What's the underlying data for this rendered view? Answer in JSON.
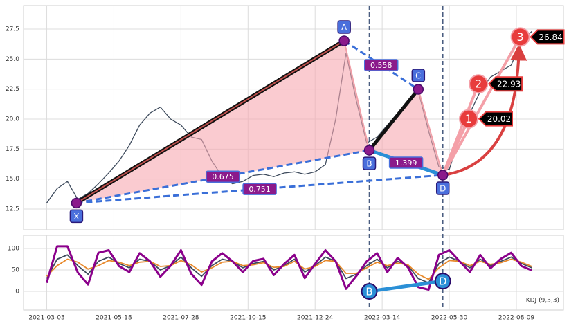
{
  "chart_data": [
    {
      "type": "line",
      "xlim": [
        -18,
        400.5
      ],
      "ylim": [
        10.77,
        29.46
      ],
      "xticks": [
        {
          "value": 0,
          "label": "2021-03-03"
        },
        {
          "value": 52,
          "label": "2021-05-18"
        },
        {
          "value": 104,
          "label": "2021-07-28"
        },
        {
          "value": 156,
          "label": "2021-10-15"
        },
        {
          "value": 208,
          "label": "2021-12-24"
        },
        {
          "value": 260,
          "label": "2022-03-14"
        },
        {
          "value": 312,
          "label": "2022-05-30"
        },
        {
          "value": 364,
          "label": "2022-08-09"
        }
      ],
      "yticks": [
        12.5,
        {
          "value": 15,
          "label": "15.0"
        },
        17.5,
        {
          "value": 20,
          "label": "20.0"
        },
        22.5,
        {
          "value": 25,
          "label": "25.0"
        },
        27.5
      ],
      "grid": true,
      "x": [
        0,
        8,
        16,
        24,
        32,
        40,
        48,
        56,
        64,
        72,
        80,
        88,
        96,
        104,
        112,
        120,
        128,
        136,
        144,
        152,
        160,
        168,
        176,
        184,
        192,
        200,
        208,
        216,
        224,
        232,
        240,
        248,
        256,
        264,
        272,
        280,
        288,
        296,
        304,
        312,
        320,
        328,
        336,
        344,
        352,
        360,
        368,
        376
      ],
      "series": [
        {
          "color": "#3d4a5c",
          "values": [
            13.0,
            14.2,
            14.8,
            13.3,
            13.8,
            14.6,
            15.5,
            16.5,
            17.8,
            19.5,
            20.5,
            21.0,
            20.0,
            19.5,
            18.5,
            18.3,
            16.5,
            15.2,
            14.6,
            14.8,
            15.3,
            15.4,
            15.2,
            15.5,
            15.6,
            15.4,
            15.6,
            16.2,
            20.0,
            25.5,
            21.5,
            18.0,
            18.5,
            19.5,
            20.5,
            21.5,
            22.3,
            19.0,
            16.0,
            15.8,
            18.5,
            20.5,
            22.3,
            23.5,
            24.0,
            24.5,
            26.5,
            27.3
          ]
        }
      ],
      "pattern": {
        "points": [
          {
            "label": "X",
            "x": 23,
            "y": 13.0
          },
          {
            "label": "A",
            "x": 230.5,
            "y": 26.52
          },
          {
            "label": "B",
            "x": 250,
            "y": 17.4
          },
          {
            "label": "C",
            "x": 288,
            "y": 22.48
          },
          {
            "label": "D",
            "x": 307,
            "y": 15.33
          }
        ],
        "ratios": [
          0.675,
          0.751,
          0.558,
          1.399
        ],
        "targets": [
          {
            "label": "1",
            "x": 327,
            "value": 20.02
          },
          {
            "label": "2",
            "x": 334.6,
            "value": 22.93
          },
          {
            "label": "3",
            "x": 367,
            "value": 26.84
          }
        ]
      }
    },
    {
      "type": "line",
      "xlim": [
        -18,
        400.5
      ],
      "ylim": [
        -43.5,
        130.6
      ],
      "xticks": [
        {
          "value": 0,
          "label": "2021-03-03"
        },
        {
          "value": 52,
          "label": "2021-05-18"
        },
        {
          "value": 104,
          "label": "2021-07-28"
        },
        {
          "value": 156,
          "label": "2021-10-15"
        },
        {
          "value": 208,
          "label": "2021-12-24"
        },
        {
          "value": 260,
          "label": "2022-03-14"
        },
        {
          "value": 312,
          "label": "2022-05-30"
        },
        {
          "value": 364,
          "label": "2022-08-09"
        }
      ],
      "yticks": [
        0,
        50,
        100
      ],
      "grid": true,
      "annotation": "KDJ (9,3,3)",
      "x": [
        0,
        8,
        16,
        24,
        32,
        40,
        48,
        56,
        64,
        72,
        80,
        88,
        96,
        104,
        112,
        120,
        128,
        136,
        144,
        152,
        160,
        168,
        176,
        184,
        192,
        200,
        208,
        216,
        224,
        232,
        240,
        248,
        256,
        264,
        272,
        280,
        288,
        296,
        304,
        312,
        320,
        328,
        336,
        344,
        352,
        360,
        368,
        376
      ],
      "series": [
        {
          "color": "#3d4a5c",
          "values": [
            30,
            75,
            85,
            60,
            40,
            70,
            80,
            65,
            55,
            75,
            70,
            50,
            60,
            80,
            55,
            35,
            60,
            75,
            70,
            55,
            65,
            70,
            50,
            60,
            75,
            45,
            60,
            80,
            70,
            30,
            40,
            60,
            75,
            55,
            70,
            60,
            30,
            20,
            65,
            80,
            70,
            55,
            75,
            60,
            70,
            80,
            65,
            55
          ]
        },
        {
          "color": "#e8892b",
          "values": [
            35,
            60,
            75,
            68,
            52,
            60,
            72,
            68,
            60,
            68,
            70,
            58,
            60,
            72,
            62,
            45,
            55,
            68,
            70,
            60,
            62,
            67,
            56,
            58,
            70,
            52,
            58,
            72,
            70,
            42,
            42,
            55,
            68,
            60,
            66,
            62,
            40,
            28,
            55,
            72,
            70,
            60,
            70,
            63,
            67,
            75,
            68,
            58
          ]
        },
        {
          "color": "#8b008b",
          "values": [
            20,
            105,
            105,
            44,
            16,
            90,
            96,
            59,
            45,
            89,
            70,
            34,
            60,
            96,
            41,
            15,
            70,
            89,
            70,
            45,
            71,
            76,
            38,
            64,
            85,
            31,
            64,
            96,
            70,
            6,
            36,
            70,
            89,
            45,
            78,
            56,
            10,
            4,
            85,
            96,
            70,
            45,
            85,
            54,
            76,
            90,
            59,
            49
          ]
        }
      ],
      "markers": [
        {
          "label": "B",
          "x": 250,
          "y": 0
        },
        {
          "label": "D",
          "x": 307,
          "y": 24
        }
      ]
    }
  ]
}
